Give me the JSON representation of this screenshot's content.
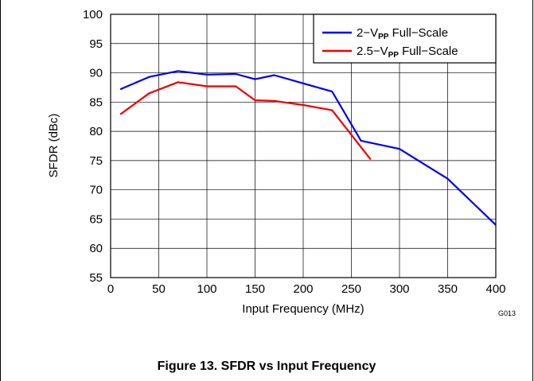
{
  "caption": "Figure 13. SFDR vs Input Frequency",
  "figure_id": "G013",
  "chart_data": {
    "type": "line",
    "title": "",
    "xlabel": "Input Frequency (MHz)",
    "ylabel": "SFDR (dBc)",
    "xlim": [
      0,
      400
    ],
    "ylim": [
      55,
      100
    ],
    "xticks": [
      0,
      50,
      100,
      150,
      200,
      250,
      300,
      350,
      400
    ],
    "yticks": [
      55,
      60,
      65,
      70,
      75,
      80,
      85,
      90,
      95,
      100
    ],
    "grid": true,
    "legend_position": "top-right",
    "series": [
      {
        "name": "2−V",
        "name_sub": "PP",
        "name_suffix": " Full−Scale",
        "color": "#0000ee",
        "x": [
          10,
          40,
          70,
          100,
          130,
          150,
          170,
          200,
          230,
          260,
          300,
          350,
          400
        ],
        "y": [
          87.2,
          89.3,
          90.3,
          89.7,
          89.8,
          88.9,
          89.6,
          88.2,
          86.8,
          78.4,
          77.0,
          71.9,
          64.0
        ]
      },
      {
        "name": "2.5−V",
        "name_sub": "PP",
        "name_suffix": " Full−Scale",
        "color": "#ee0000",
        "x": [
          10,
          40,
          70,
          100,
          130,
          150,
          170,
          200,
          230,
          270
        ],
        "y": [
          82.9,
          86.5,
          88.4,
          87.7,
          87.7,
          85.3,
          85.2,
          84.5,
          83.6,
          75.2
        ]
      }
    ]
  }
}
